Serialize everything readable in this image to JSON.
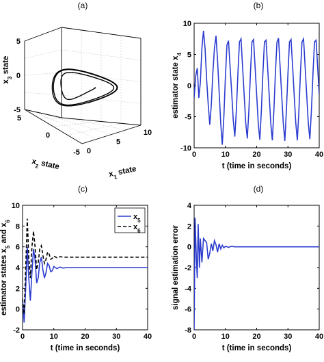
{
  "chart_data": [
    {
      "id": "a",
      "panel_label": "(a)",
      "type": "line3d",
      "xlabel": "x",
      "xlabel_sub": "1",
      "xlabel_suffix": " state",
      "ylabel": "x",
      "ylabel_sub": "2",
      "ylabel_suffix": " state",
      "zlabel": "x",
      "zlabel_sub": "3",
      "zlabel_suffix": " state",
      "xticks": [
        "0",
        "5",
        "10"
      ],
      "yticks": [
        "5",
        "0",
        "-5"
      ],
      "zticks": [
        "5",
        "0",
        "-5"
      ],
      "xlim": [
        -5,
        10
      ],
      "ylim": [
        -5,
        5
      ],
      "zlim": [
        -5,
        5
      ],
      "series": [
        {
          "color": "#000000"
        }
      ]
    },
    {
      "id": "b",
      "panel_label": "(b)",
      "type": "line",
      "xlabel": "t (time in seconds)",
      "ylabel": "estimator state x",
      "ylabel_sub": "4",
      "xlim": [
        0,
        40
      ],
      "ylim": [
        -10,
        10
      ],
      "xticks": [
        0,
        10,
        20,
        30,
        40
      ],
      "yticks": [
        -10,
        -5,
        0,
        5,
        10
      ],
      "series": [
        {
          "color": "#2b3ccf",
          "x": [
            0,
            0.5,
            1,
            1.5,
            2,
            2.5,
            3,
            3.5,
            4,
            4.5,
            5,
            5.5,
            6,
            6.5,
            7,
            7.5,
            8,
            8.5,
            9,
            9.5,
            10,
            10.5,
            11,
            11.5,
            12,
            12.5,
            13,
            13.5,
            14,
            14.5,
            15,
            15.5,
            16,
            16.5,
            17,
            17.5,
            18,
            18.5,
            19,
            19.5,
            20,
            20.5,
            21,
            21.5,
            22,
            22.5,
            23,
            23.5,
            24,
            24.5,
            25,
            25.5,
            26,
            26.5,
            27,
            27.5,
            28,
            28.5,
            29,
            29.5,
            30,
            30.5,
            31,
            31.5,
            32,
            32.5,
            33,
            33.5,
            34,
            34.5,
            35,
            35.5,
            36,
            36.5,
            37,
            37.5,
            38,
            38.5,
            39,
            39.5,
            40
          ],
          "y": [
            -2,
            1.5,
            2.8,
            -2,
            0.5,
            6,
            8.8,
            6,
            1,
            -3,
            -6.3,
            -3,
            2,
            6,
            8,
            4,
            -1,
            -6,
            -9.5,
            -5,
            1.5,
            6.5,
            7.2,
            3,
            -1,
            -5.5,
            -8.2,
            -4,
            2,
            7,
            7.5,
            3,
            -1.5,
            -6,
            -8.5,
            -4,
            2,
            7,
            7.4,
            3,
            -1.5,
            -6,
            -8.7,
            -4,
            2,
            7,
            7.3,
            3,
            -1.5,
            -6,
            -8.8,
            -4,
            2,
            7,
            7.6,
            3,
            -1.5,
            -6,
            -8.9,
            -4,
            2,
            7,
            7.4,
            3,
            -1.5,
            -6,
            -8.8,
            -4,
            2,
            7,
            7.5,
            3,
            -1.5,
            -6,
            -8.6,
            -4,
            2,
            7,
            7.3,
            3,
            -1.5
          ]
        }
      ]
    },
    {
      "id": "c",
      "panel_label": "(c)",
      "type": "line",
      "xlabel": "t (time in seconds)",
      "ylabel": "estimator states x",
      "ylabel_sub": "5",
      "ylabel_mid": " and x",
      "ylabel_sub2": "6",
      "xlim": [
        0,
        40
      ],
      "ylim": [
        -2,
        10
      ],
      "xticks": [
        0,
        10,
        20,
        30,
        40
      ],
      "yticks": [
        -2,
        0,
        2,
        4,
        6,
        8,
        10
      ],
      "legend_position": "top-right",
      "series": [
        {
          "name": "x",
          "name_sub": "5",
          "color": "#2b3ccf",
          "dash": "",
          "x": [
            0,
            0.5,
            1,
            1.5,
            2,
            2.5,
            3,
            3.5,
            4,
            4.5,
            5,
            5.5,
            6,
            6.5,
            7,
            7.5,
            8,
            8.5,
            9,
            9.5,
            10,
            11,
            12,
            13,
            14,
            16,
            18,
            20,
            25,
            30,
            35,
            40
          ],
          "y": [
            1,
            -1.3,
            2,
            6,
            3,
            0.8,
            3.5,
            5.8,
            4.8,
            2.5,
            3,
            4.5,
            5,
            3.8,
            3,
            3.5,
            4.4,
            4.2,
            3.6,
            3.7,
            4.1,
            3.9,
            4.05,
            3.95,
            4,
            4,
            4,
            4,
            4,
            4,
            4,
            4
          ]
        },
        {
          "name": "x",
          "name_sub": "6",
          "color": "#000000",
          "dash": "5,3",
          "x": [
            0,
            0.5,
            1,
            1.5,
            2,
            2.5,
            3,
            3.5,
            4,
            4.5,
            5,
            5.5,
            6,
            6.5,
            7,
            7.5,
            8,
            8.5,
            9,
            9.5,
            10,
            11,
            12,
            13,
            14,
            16,
            18,
            20,
            25,
            30,
            35,
            40
          ],
          "y": [
            1,
            -0.5,
            4,
            8.7,
            5,
            3,
            6,
            7.5,
            6,
            3.8,
            4.5,
            5.8,
            6.1,
            5.2,
            4.4,
            4.8,
            5.5,
            5.3,
            4.8,
            4.9,
            5.1,
            4.95,
            5.05,
            5,
            5,
            5,
            5,
            5,
            5,
            5,
            5,
            5
          ]
        }
      ]
    },
    {
      "id": "d",
      "panel_label": "(d)",
      "type": "line",
      "xlabel": "t (time in seconds)",
      "ylabel": "signal estimation error",
      "xlim": [
        0,
        40
      ],
      "ylim": [
        -8,
        4
      ],
      "xticks": [
        0,
        10,
        20,
        30,
        40
      ],
      "yticks": [
        -8,
        -6,
        -4,
        -2,
        0,
        2,
        4
      ],
      "series": [
        {
          "color": "#2b3ccf",
          "x": [
            0,
            0.3,
            0.7,
            1,
            1.3,
            1.7,
            2,
            2.5,
            3,
            3.5,
            4,
            4.5,
            5,
            5.5,
            6,
            6.5,
            7,
            7.5,
            8,
            8.5,
            9,
            9.5,
            10,
            11,
            12,
            13,
            14,
            16,
            18,
            20,
            25,
            30,
            35,
            40
          ],
          "y": [
            -8,
            2.8,
            -1,
            -3,
            2.2,
            -2,
            0.8,
            -1.5,
            0.8,
            0.6,
            0.4,
            -1.2,
            -0.6,
            0.3,
            -0.4,
            0.6,
            0.2,
            -0.5,
            0.3,
            -0.2,
            0.15,
            -0.1,
            0.05,
            -0.05,
            0.05,
            0,
            0,
            0,
            0,
            0,
            0,
            0,
            0,
            0
          ]
        }
      ]
    }
  ]
}
